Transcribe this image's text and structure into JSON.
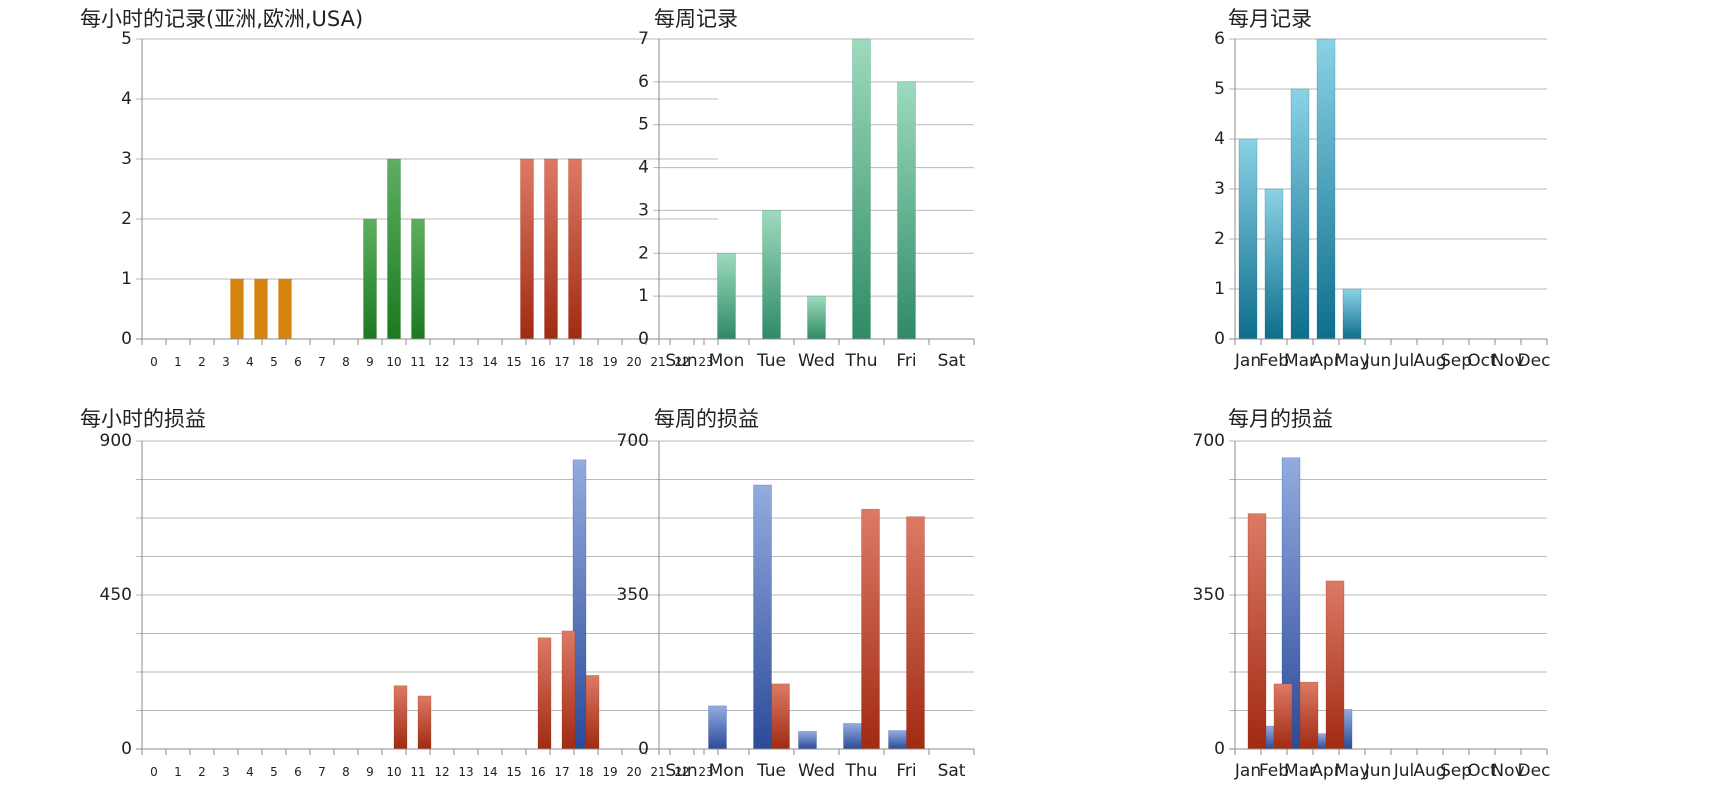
{
  "colors": {
    "orange": "#d4830e",
    "green_dark": "#1a7a1f",
    "green_light": "#5fae62",
    "red_dark": "#a12a12",
    "red_light": "#dc7a66",
    "teal_dark": "#2f8a66",
    "teal_light": "#9ddbbd",
    "cyan_dark": "#0d6e8c",
    "cyan_light": "#8bd2e6",
    "blue_dark": "#2b4a99",
    "blue_light": "#93acdf",
    "grid": "#b9b9b9",
    "axis": "#8c8c8c"
  },
  "chart_data": [
    {
      "id": "hourly-records",
      "type": "bar",
      "title": "每小时的记录(亚洲,欧洲,USA)",
      "categories": [
        "0",
        "1",
        "2",
        "3",
        "4",
        "5",
        "6",
        "7",
        "8",
        "9",
        "10",
        "11",
        "12",
        "13",
        "14",
        "15",
        "16",
        "17",
        "18",
        "19",
        "20",
        "21",
        "22",
        "23"
      ],
      "series": [
        {
          "values": [
            0,
            0,
            0,
            0,
            1,
            1,
            1,
            0,
            0,
            0,
            0,
            0,
            0,
            0,
            0,
            0,
            0,
            0,
            0,
            0,
            0,
            0,
            0,
            0
          ],
          "color": "orange"
        },
        {
          "values": [
            0,
            0,
            0,
            0,
            0,
            0,
            0,
            0,
            0,
            2,
            3,
            2,
            0,
            0,
            0,
            0,
            0,
            0,
            0,
            0,
            0,
            0,
            0,
            0
          ],
          "color": "green"
        },
        {
          "values": [
            0,
            0,
            0,
            0,
            0,
            0,
            0,
            0,
            0,
            0,
            0,
            0,
            0,
            0,
            0,
            3,
            3,
            3,
            0,
            0,
            0,
            0,
            0,
            0
          ],
          "color": "red"
        }
      ],
      "ylim": [
        0,
        5
      ],
      "yticks": [
        0,
        1,
        2,
        3,
        4,
        5
      ],
      "grid": true
    },
    {
      "id": "weekly-records",
      "type": "bar",
      "title": "每周记录",
      "categories": [
        "Sun",
        "Mon",
        "Tue",
        "Wed",
        "Thu",
        "Fri",
        "Sat"
      ],
      "series": [
        {
          "values": [
            0,
            2,
            3,
            1,
            7,
            6,
            0
          ],
          "color": "teal"
        }
      ],
      "ylim": [
        0,
        7
      ],
      "yticks": [
        0,
        1,
        2,
        3,
        4,
        5,
        6,
        7
      ],
      "grid": true
    },
    {
      "id": "monthly-records",
      "type": "bar",
      "title": "每月记录",
      "categories": [
        "Jan",
        "Feb",
        "Mar",
        "Apr",
        "May",
        "Jun",
        "Jul",
        "Aug",
        "Sep",
        "Oct",
        "Nov",
        "Dec"
      ],
      "series": [
        {
          "values": [
            4,
            3,
            5,
            6,
            1,
            0,
            0,
            0,
            0,
            0,
            0,
            0
          ],
          "color": "cyan"
        }
      ],
      "ylim": [
        0,
        6
      ],
      "yticks": [
        0,
        1,
        2,
        3,
        4,
        5,
        6
      ],
      "grid": true
    },
    {
      "id": "hourly-profit-loss",
      "type": "bar",
      "title": "每小时的损益",
      "categories": [
        "0",
        "1",
        "2",
        "3",
        "4",
        "5",
        "6",
        "7",
        "8",
        "9",
        "10",
        "11",
        "12",
        "13",
        "14",
        "15",
        "16",
        "17",
        "18",
        "19",
        "20",
        "21",
        "22",
        "23"
      ],
      "series": [
        {
          "values": [
            0,
            0,
            0,
            0,
            0,
            0,
            0,
            0,
            0,
            0,
            0,
            0,
            0,
            0,
            0,
            0,
            0,
            0,
            845,
            0,
            0,
            0,
            0,
            0
          ],
          "color": "blue"
        },
        {
          "values": [
            0,
            0,
            0,
            0,
            0,
            0,
            0,
            0,
            0,
            0,
            185,
            155,
            0,
            0,
            0,
            0,
            325,
            345,
            215,
            0,
            0,
            0,
            0,
            0
          ],
          "color": "red"
        }
      ],
      "ylim": [
        0,
        900
      ],
      "yticks": [
        0,
        450,
        900
      ],
      "grid": true
    },
    {
      "id": "weekly-profit-loss",
      "type": "bar",
      "title": "每周的损益",
      "categories": [
        "Sun",
        "Mon",
        "Tue",
        "Wed",
        "Thu",
        "Fri",
        "Sat"
      ],
      "series": [
        {
          "values": [
            0,
            98,
            600,
            40,
            58,
            42,
            0
          ],
          "color": "blue"
        },
        {
          "values": [
            0,
            0,
            148,
            0,
            545,
            528,
            0
          ],
          "color": "red"
        }
      ],
      "ylim": [
        0,
        700
      ],
      "yticks": [
        0,
        350,
        700
      ],
      "grid": true
    },
    {
      "id": "monthly-profit-loss",
      "type": "bar",
      "title": "每月的损益",
      "categories": [
        "Jan",
        "Feb",
        "Mar",
        "Apr",
        "May",
        "Jun",
        "Jul",
        "Aug",
        "Sep",
        "Oct",
        "Nov",
        "Dec"
      ],
      "series": [
        {
          "values": [
            0,
            52,
            662,
            35,
            90,
            0,
            0,
            0,
            0,
            0,
            0,
            0
          ],
          "color": "blue"
        },
        {
          "values": [
            535,
            148,
            152,
            382,
            0,
            0,
            0,
            0,
            0,
            0,
            0,
            0
          ],
          "color": "red"
        }
      ],
      "ylim": [
        0,
        700
      ],
      "yticks": [
        0,
        350,
        700
      ],
      "grid": true
    }
  ]
}
